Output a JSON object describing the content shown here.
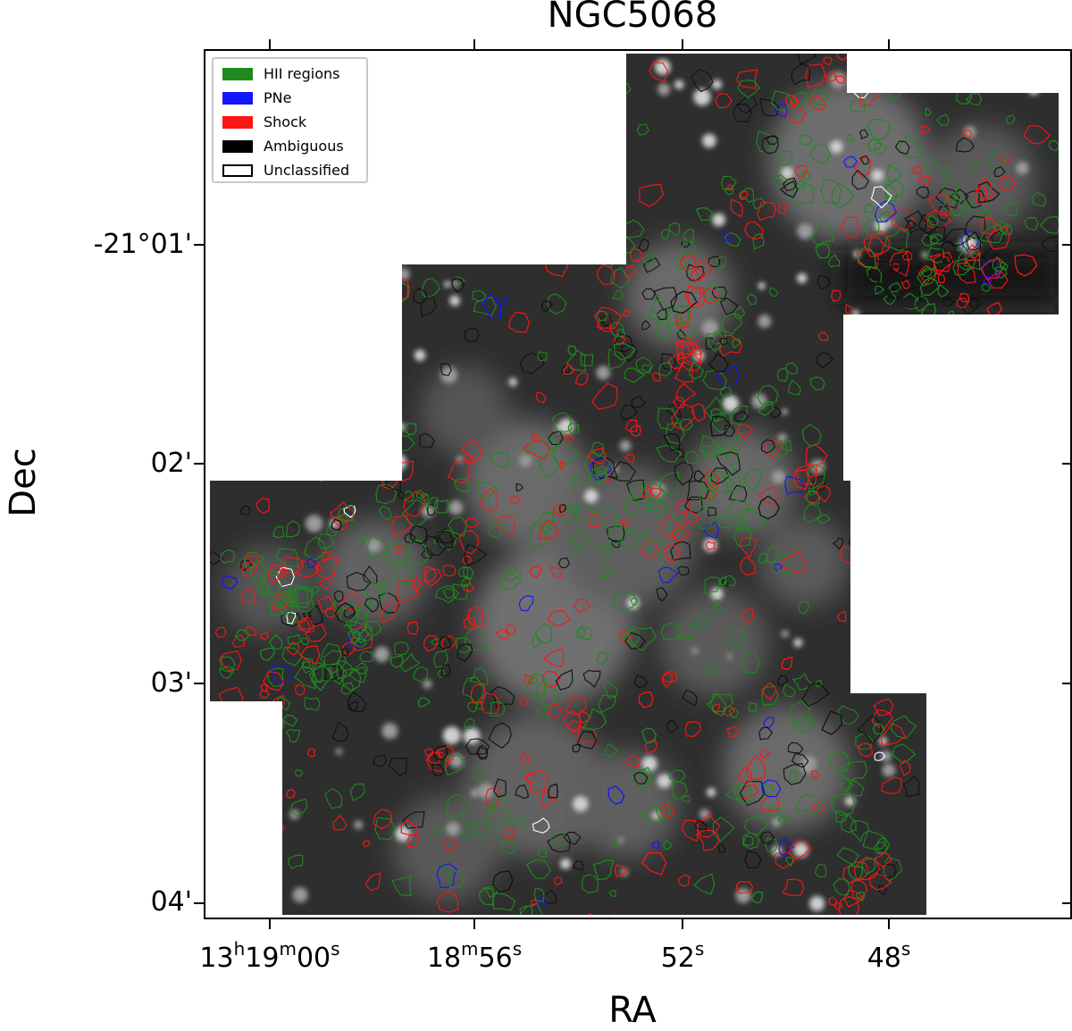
{
  "title": "NGC5068",
  "xlabel": "RA",
  "ylabel": "Dec",
  "yticks": [
    "-21°01'",
    "02'",
    "03'",
    "04'"
  ],
  "xticks": [
    {
      "h": "13",
      "hsup": "h",
      "m": "19",
      "msup": "m",
      "s": "00",
      "ssup": "s"
    },
    {
      "m": "18",
      "msup": "m",
      "s": "56",
      "ssup": "s"
    },
    {
      "s": "52",
      "ssup": "s"
    },
    {
      "s": "48",
      "ssup": "s"
    }
  ],
  "legend": [
    {
      "label": "HII regions",
      "color": "#1e8a1e",
      "fill": true
    },
    {
      "label": "PNe",
      "color": "#1414ff",
      "fill": true
    },
    {
      "label": "Shock",
      "color": "#ff1414",
      "fill": true
    },
    {
      "label": "Ambiguous",
      "color": "#000000",
      "fill": true
    },
    {
      "label": "Unclassified",
      "color": "#000000",
      "fill": false
    }
  ],
  "colors": {
    "hii": "#1e8a1e",
    "pne": "#1414ff",
    "shock": "#ff1414",
    "ambiguous": "#000000",
    "unclassified": "#ffffff",
    "background_dark": "#2b2b2b",
    "frame": "#000000"
  }
}
